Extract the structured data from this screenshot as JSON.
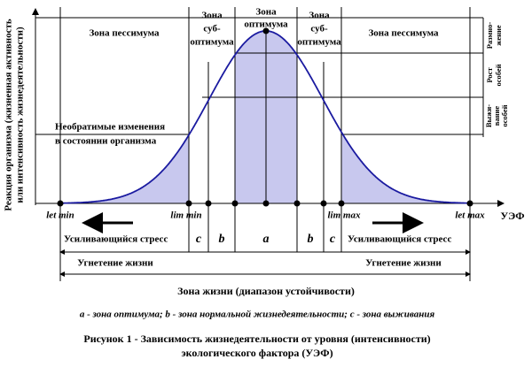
{
  "axes": {
    "y_label": [
      "Реакция организма (жизненная активность",
      "или интенсивность жизнедеятельности)"
    ],
    "x_label": "УЭФ"
  },
  "zones": {
    "pessimum_left": "Зона пессимума",
    "suboptimum_left": [
      "Зона",
      "суб-",
      "оптимума"
    ],
    "optimum": [
      "Зона",
      "оптимума"
    ],
    "suboptimum_right": [
      "Зона",
      "суб-",
      "оптимума"
    ],
    "pessimum_right": "Зона пессимума"
  },
  "levels": {
    "reproduction": [
      "Размно-",
      "жение"
    ],
    "growth": [
      "Рост",
      "особей"
    ],
    "survival": [
      "Выжи-",
      "вание",
      "особей"
    ]
  },
  "irreversible": [
    "Необратимые изменения",
    "в состоянии организма"
  ],
  "points": {
    "let_min": "let min",
    "lim_min": "lim min",
    "lim_max": "lim max",
    "let_max": "let max"
  },
  "bands": {
    "stress_left": "Усиливающийся стресс",
    "stress_right": "Усиливающийся стресс",
    "c_left": "c",
    "b_left": "b",
    "a": "a",
    "b_right": "b",
    "c_right": "c",
    "oppression_left": "Угнетение жизни",
    "oppression_right": "Угнетение жизни",
    "life_zone": "Зона жизни (диапазон устойчивости)"
  },
  "legend": "a - зона оптимума; b - зона нормальной жизнедеятельности; c - зона выживания",
  "caption": [
    "Рисунок 1 - Зависимость жизнедеятельности от уровня (интенсивности)",
    "экологического фактора (УЭФ)"
  ]
}
